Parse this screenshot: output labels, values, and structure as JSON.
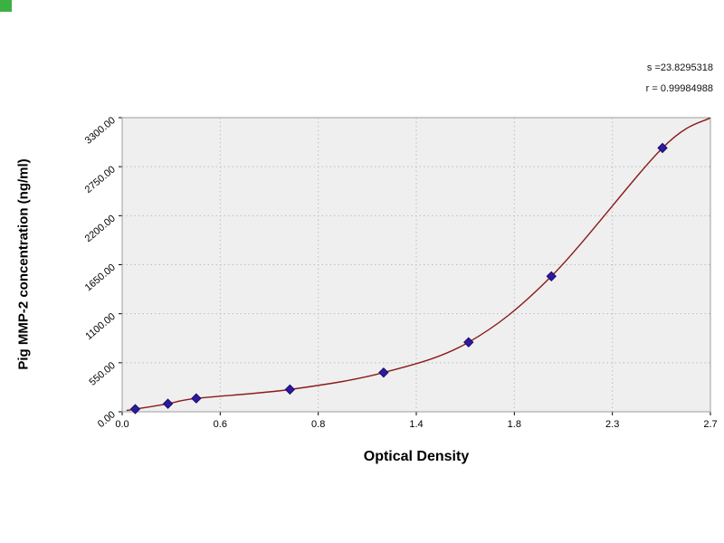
{
  "watermark": {
    "color": "#3cb043"
  },
  "stats": {
    "line1": "s =23.8295318",
    "line2": "r = 0.99984988"
  },
  "chart_data": {
    "type": "scatter",
    "title": "",
    "xlabel": "Optical Density",
    "ylabel": "Pig MMP-2 concentration (ng/ml)",
    "x_tick_labels": [
      "0.0",
      "0.6",
      "0.8",
      "1.4",
      "1.8",
      "2.3",
      "2.7"
    ],
    "y_tick_labels": [
      "0.00",
      "550.00",
      "1100.00",
      "1650.00",
      "2200.00",
      "2750.00",
      "3300.00"
    ],
    "xlim": [
      0,
      2.7
    ],
    "ylim": [
      0,
      3300
    ],
    "grid": true,
    "legend": "none",
    "plot_background": "#efefef",
    "grid_color": "#bdbdbd",
    "border_color": "#9e9e9e",
    "series": [
      {
        "name": "fit-curve",
        "type": "line",
        "color": "#8b1a1a",
        "points": [
          [
            0.02,
            15
          ],
          [
            0.06,
            30
          ],
          [
            0.21,
            90
          ],
          [
            0.34,
            150
          ],
          [
            0.77,
            250
          ],
          [
            1.2,
            440
          ],
          [
            1.59,
            780
          ],
          [
            1.97,
            1520
          ],
          [
            2.48,
            2960
          ],
          [
            2.7,
            3300
          ]
        ]
      },
      {
        "name": "standards",
        "type": "scatter",
        "marker": "diamond",
        "color": "#2d1b9e",
        "edge": "#1a0a6c",
        "points": [
          [
            0.06,
            30
          ],
          [
            0.21,
            90
          ],
          [
            0.34,
            150
          ],
          [
            0.77,
            250
          ],
          [
            1.2,
            440
          ],
          [
            1.59,
            780
          ],
          [
            1.97,
            1520
          ],
          [
            2.48,
            2960
          ]
        ]
      }
    ]
  }
}
